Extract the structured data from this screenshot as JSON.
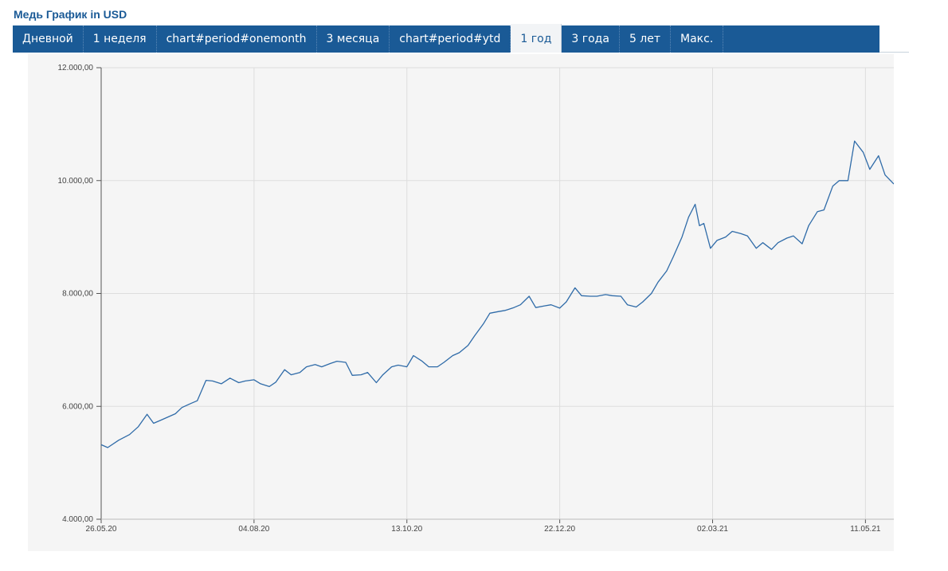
{
  "title": "Медь График in USD",
  "tabs": [
    {
      "label": "Дневной",
      "active": false
    },
    {
      "label": "1 неделя",
      "active": false
    },
    {
      "label": "chart#period#onemonth",
      "active": false
    },
    {
      "label": "3 месяца",
      "active": false
    },
    {
      "label": "chart#period#ytd",
      "active": false
    },
    {
      "label": "1 год",
      "active": true
    },
    {
      "label": "3 года",
      "active": false
    },
    {
      "label": "5 лет",
      "active": false
    },
    {
      "label": "Макс.",
      "active": false
    }
  ],
  "colors": {
    "accent": "#1a5a96",
    "line": "#2f6ba8",
    "plot_bg": "#f5f5f5",
    "grid": "#dddddd"
  },
  "chart_data": {
    "type": "line",
    "title": "",
    "xlabel": "",
    "ylabel": "",
    "ylim": [
      4000,
      12000
    ],
    "yticks": [
      4000,
      6000,
      8000,
      10000,
      12000
    ],
    "ytick_labels": [
      "4.000,00",
      "6.000,00",
      "8.000,00",
      "10.000,00",
      "12.000,00"
    ],
    "xlim": [
      "2020-05-26",
      "2021-05-24"
    ],
    "xticks": [
      "2020-05-26",
      "2020-08-04",
      "2020-10-13",
      "2020-12-22",
      "2021-03-02",
      "2021-05-11"
    ],
    "xtick_labels": [
      "26.05.20",
      "04.08.20",
      "13.10.20",
      "22.12.20",
      "02.03.21",
      "11.05.21"
    ],
    "grid": true,
    "series": [
      {
        "x": [
          "2020-05-26",
          "2020-05-29",
          "2020-06-03",
          "2020-06-08",
          "2020-06-12",
          "2020-06-16",
          "2020-06-19",
          "2020-06-22",
          "2020-06-25",
          "2020-06-29",
          "2020-07-02",
          "2020-07-06",
          "2020-07-09",
          "2020-07-13",
          "2020-07-16",
          "2020-07-20",
          "2020-07-24",
          "2020-07-28",
          "2020-07-31",
          "2020-08-04",
          "2020-08-07",
          "2020-08-11",
          "2020-08-14",
          "2020-08-18",
          "2020-08-21",
          "2020-08-25",
          "2020-08-28",
          "2020-09-01",
          "2020-09-04",
          "2020-09-08",
          "2020-09-11",
          "2020-09-15",
          "2020-09-18",
          "2020-09-22",
          "2020-09-25",
          "2020-09-29",
          "2020-10-02",
          "2020-10-06",
          "2020-10-09",
          "2020-10-13",
          "2020-10-16",
          "2020-10-20",
          "2020-10-23",
          "2020-10-27",
          "2020-10-30",
          "2020-11-03",
          "2020-11-06",
          "2020-11-10",
          "2020-11-13",
          "2020-11-17",
          "2020-11-20",
          "2020-11-24",
          "2020-11-27",
          "2020-12-01",
          "2020-12-04",
          "2020-12-08",
          "2020-12-11",
          "2020-12-15",
          "2020-12-18",
          "2020-12-22",
          "2020-12-25",
          "2020-12-29",
          "2021-01-01",
          "2021-01-05",
          "2021-01-08",
          "2021-01-12",
          "2021-01-15",
          "2021-01-19",
          "2021-01-22",
          "2021-01-26",
          "2021-01-29",
          "2021-02-02",
          "2021-02-05",
          "2021-02-09",
          "2021-02-12",
          "2021-02-16",
          "2021-02-19",
          "2021-02-22",
          "2021-02-24",
          "2021-02-26",
          "2021-03-01",
          "2021-03-04",
          "2021-03-08",
          "2021-03-11",
          "2021-03-15",
          "2021-03-18",
          "2021-03-22",
          "2021-03-25",
          "2021-03-29",
          "2021-04-01",
          "2021-04-05",
          "2021-04-08",
          "2021-04-12",
          "2021-04-15",
          "2021-04-19",
          "2021-04-22",
          "2021-04-26",
          "2021-04-29",
          "2021-05-03",
          "2021-05-06",
          "2021-05-10",
          "2021-05-13",
          "2021-05-17",
          "2021-05-20",
          "2021-05-24"
        ],
        "values": [
          5320,
          5270,
          5400,
          5500,
          5640,
          5860,
          5700,
          5750,
          5800,
          5870,
          5980,
          6050,
          6100,
          6460,
          6450,
          6400,
          6500,
          6420,
          6450,
          6470,
          6400,
          6350,
          6430,
          6650,
          6560,
          6600,
          6700,
          6740,
          6700,
          6760,
          6800,
          6780,
          6550,
          6560,
          6600,
          6420,
          6560,
          6700,
          6730,
          6700,
          6900,
          6800,
          6700,
          6700,
          6780,
          6900,
          6950,
          7080,
          7250,
          7460,
          7650,
          7680,
          7700,
          7750,
          7800,
          7950,
          7750,
          7780,
          7800,
          7740,
          7850,
          8100,
          7960,
          7950,
          7950,
          7980,
          7960,
          7950,
          7800,
          7760,
          7850,
          8000,
          8200,
          8400,
          8650,
          9000,
          9350,
          9580,
          9200,
          9240,
          8800,
          8940,
          9000,
          9100,
          9060,
          9020,
          8800,
          8900,
          8780,
          8900,
          8980,
          9020,
          8880,
          9200,
          9450,
          9480,
          9900,
          10000,
          10000,
          10700,
          10500,
          10200,
          10440,
          10100,
          9940
        ]
      }
    ]
  }
}
